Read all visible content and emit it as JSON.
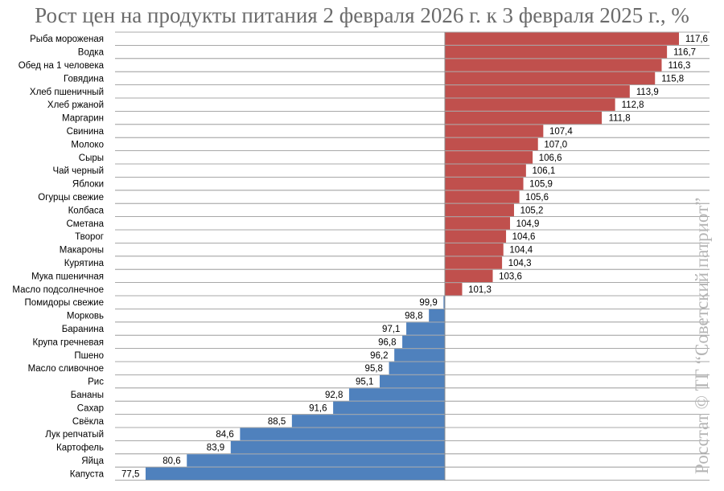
{
  "chart_data": {
    "type": "bar",
    "orientation": "horizontal",
    "title": "Рост цен на продукты питания 2 февраля 2026 г. к 3 февраля 2025 г., %",
    "baseline": 100,
    "xlim": [
      77.5,
      117.6
    ],
    "colors": {
      "above": "#c0504d",
      "below": "#4f81bd",
      "grid": "#8c8c8c",
      "axis": "#8c8c8c"
    },
    "categories": [
      "Рыба мороженая",
      "Водка",
      "Обед на 1 человека",
      "Говядина",
      "Хлеб пшеничный",
      "Хлеб ржаной",
      "Маргарин",
      "Свинина",
      "Молоко",
      "Сыры",
      "Чай черный",
      "Яблоки",
      "Огурцы свежие",
      "Колбаса",
      "Сметана",
      "Творог",
      "Макароны",
      "Курятина",
      "Мука пшеничная",
      "Масло подсолнечное",
      "Помидоры свежие",
      "Морковь",
      "Баранина",
      "Крупа гречневая",
      "Пшено",
      "Масло сливочное",
      "Рис",
      "Бананы",
      "Сахар",
      "Свёкла",
      "Лук репчатый",
      "Картофель",
      "Яйца",
      "Капуста"
    ],
    "values": [
      117.6,
      116.7,
      116.3,
      115.8,
      113.9,
      112.8,
      111.8,
      107.4,
      107.0,
      106.6,
      106.1,
      105.9,
      105.6,
      105.2,
      104.9,
      104.6,
      104.4,
      104.3,
      103.6,
      101.3,
      99.9,
      98.8,
      97.1,
      96.8,
      96.2,
      95.8,
      95.1,
      92.8,
      91.6,
      88.5,
      84.6,
      83.9,
      80.6,
      77.5
    ],
    "value_labels": [
      "117,6",
      "116,7",
      "116,3",
      "115,8",
      "113,9",
      "112,8",
      "111,8",
      "107,4",
      "107,0",
      "106,6",
      "106,1",
      "105,9",
      "105,6",
      "105,2",
      "104,9",
      "104,6",
      "104,4",
      "104,3",
      "103,6",
      "101,3",
      "99,9",
      "98,8",
      "97,1",
      "96,8",
      "96,2",
      "95,8",
      "95,1",
      "92,8",
      "91,6",
      "88,5",
      "84,6",
      "83,9",
      "80,6",
      "77,5"
    ],
    "watermark": "Росстат © ТГ “Советский патриот”"
  }
}
